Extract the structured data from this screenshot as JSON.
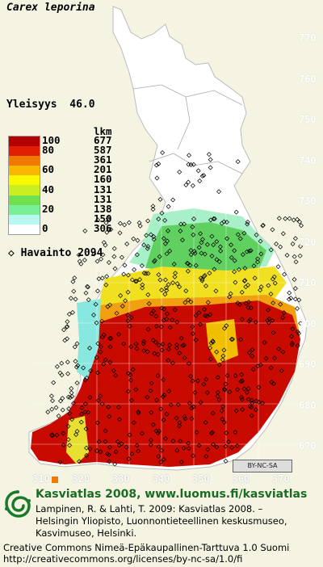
{
  "species": "Carex leporina",
  "frequency_label": "Yleisyys",
  "frequency_value": "46.0",
  "legend": {
    "count_header": "lkm",
    "classes": [
      {
        "label": "100",
        "count": "677",
        "color": "#b40000"
      },
      {
        "label": "80",
        "count": "587",
        "color": "#e01e00"
      },
      {
        "label": "",
        "count": "361",
        "color": "#f07a00"
      },
      {
        "label": "60",
        "count": "201",
        "color": "#f8b800"
      },
      {
        "label": "",
        "count": "160",
        "color": "#f8f800"
      },
      {
        "label": "40",
        "count": "131",
        "color": "#c8f020"
      },
      {
        "label": "",
        "count": "131",
        "color": "#70e050"
      },
      {
        "label": "20",
        "count": "138",
        "color": "#78f098"
      },
      {
        "label": "",
        "count": "150",
        "color": "#b8f8f0"
      },
      {
        "label": "0",
        "count": "306",
        "color": "#ffffff"
      }
    ],
    "observation_label": "Havainto",
    "observation_count": "2094"
  },
  "y_ticks": [
    "770",
    "760",
    "750",
    "740",
    "730",
    "720",
    "710",
    "700",
    "690",
    "680",
    "670"
  ],
  "x_ticks": [
    "310",
    "320",
    "330",
    "340",
    "350",
    "360",
    "370"
  ],
  "cc_badge": "BY-NC-SA",
  "footer": {
    "title": "Kasviatlas 2008, www.luomus.fi/kasviatlas",
    "citation_lines": [
      "Lampinen, R. & Lahti, T. 2009: Kasviatlas 2008. –",
      "Helsingin Yliopisto, Luonnontieteellinen keskusmuseo,",
      "Kasvimuseo, Helsinki."
    ],
    "license_lines": [
      "Creative Commons Nimeä-Epäkaupallinen-Tarttuva 1.0 Suomi",
      "http://creativecommons.org/licenses/by-nc-sa/1.0/fi"
    ]
  }
}
